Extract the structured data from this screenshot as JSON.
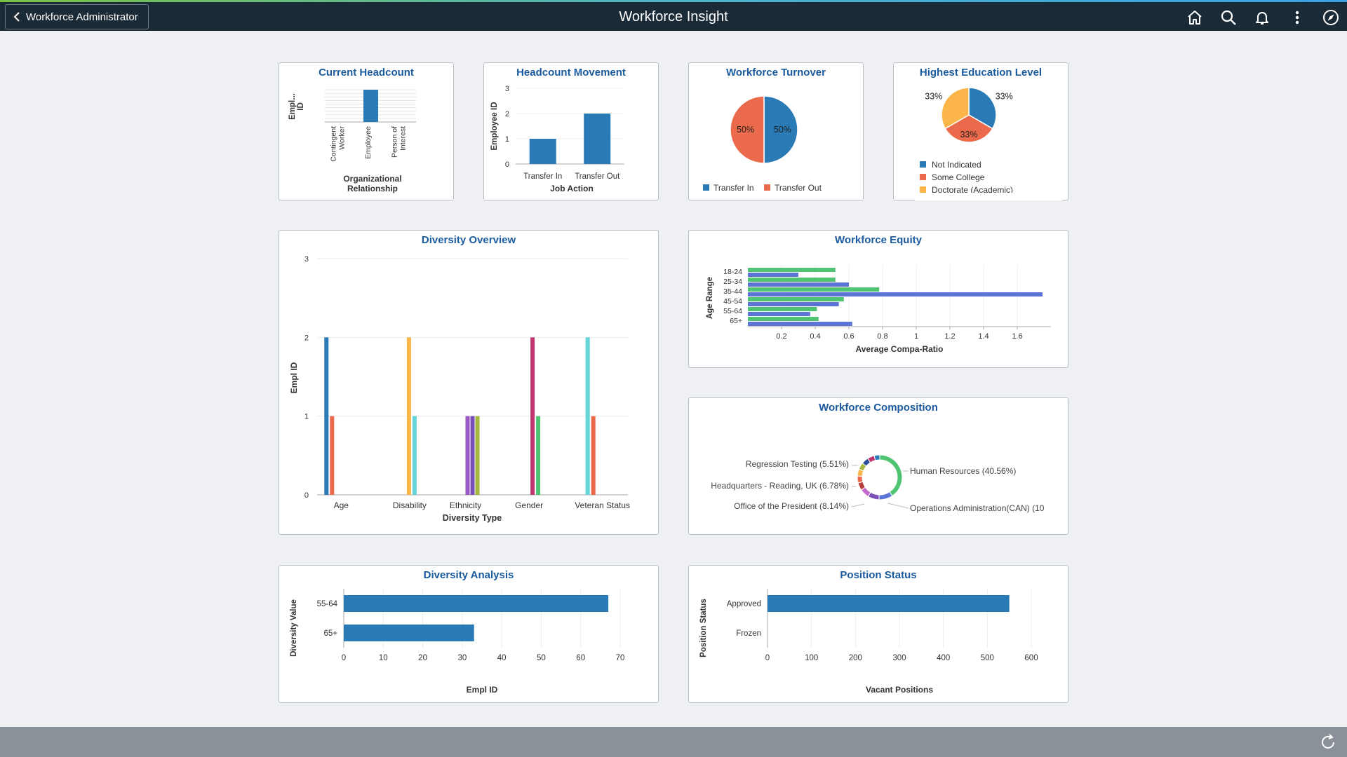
{
  "header": {
    "back_label": "Workforce Administrator",
    "title": "Workforce Insight",
    "icons": [
      "home-icon",
      "search-icon",
      "bell-icon",
      "more-vertical-icon",
      "navbar-compass-icon"
    ]
  },
  "footer": {
    "icon": "refresh-icon"
  },
  "colors": {
    "accent": "#1a5a9e",
    "bar": "#2a7ab5",
    "header_bg": "#1b2a37"
  },
  "tiles": {
    "current_headcount": {
      "title": "Current Headcount",
      "chart_data": {
        "type": "bar",
        "categories": [
          "Contingent Worker",
          "Employee",
          "Person of Interest"
        ],
        "values": [
          0,
          1,
          0
        ],
        "xlabel": "Organizational Relationship",
        "ylabel": "Empl... ID",
        "ylim": [
          0,
          1
        ]
      }
    },
    "headcount_movement": {
      "title": "Headcount Movement",
      "chart_data": {
        "type": "bar",
        "categories": [
          "Transfer In",
          "Transfer Out"
        ],
        "values": [
          1,
          2
        ],
        "xlabel": "Job Action",
        "ylabel": "Employee ID",
        "yticks": [
          "0",
          "1",
          "2",
          "3"
        ],
        "ylim": [
          0,
          3
        ]
      }
    },
    "workforce_turnover": {
      "title": "Workforce Turnover",
      "chart_data": {
        "type": "pie",
        "slices": [
          {
            "label": "Transfer In",
            "value": 50,
            "display": "50%",
            "color": "#2a7ab5"
          },
          {
            "label": "Transfer Out",
            "value": 50,
            "display": "50%",
            "color": "#ec6a4c"
          }
        ],
        "legend": "bottom"
      }
    },
    "education": {
      "title": "Highest Education Level",
      "chart_data": {
        "type": "pie",
        "slices": [
          {
            "label": "Not Indicated",
            "value": 33.33,
            "display": "33%",
            "color": "#2a7ab5"
          },
          {
            "label": "Some College",
            "value": 33.33,
            "display": "33%",
            "color": "#ec6a4c"
          },
          {
            "label": "Doctorate (Academic)",
            "value": 33.33,
            "display": "33%",
            "color": "#fbb549"
          }
        ],
        "legend": "bottom"
      }
    },
    "diversity_overview": {
      "title": "Diversity Overview",
      "chart_data": {
        "type": "bar",
        "categories": [
          "Age",
          "Disability",
          "Ethnicity",
          "Gender",
          "Veteran Status"
        ],
        "series": [
          {
            "values": [
              2,
              2,
              0,
              2,
              2
            ],
            "colors": [
              "#2a7ab5",
              "#fbb549",
              "",
              "#c0376f",
              "#65d5d9"
            ]
          },
          {
            "values": [
              1,
              1,
              0,
              1,
              1
            ],
            "colors": [
              "#ec6a4c",
              "#65d5d9",
              "",
              "#4fc573",
              "#ec6a4c"
            ]
          }
        ],
        "ethnicity_values": [
          1,
          1,
          1
        ],
        "ethnicity_colors": [
          "#9b59c6",
          "#7b4fb8",
          "#a5b83e"
        ],
        "xlabel": "Diversity Type",
        "ylabel": "Empl ID",
        "yticks": [
          "0",
          "1",
          "2",
          "3"
        ],
        "ylim": [
          0,
          3
        ]
      }
    },
    "workforce_equity": {
      "title": "Workforce Equity",
      "chart_data": {
        "type": "bar",
        "orientation": "horizontal",
        "categories": [
          "18-24",
          "25-34",
          "35-44",
          "45-54",
          "55-64",
          "65+"
        ],
        "series": [
          {
            "color": "#4fc573",
            "values": [
              0.52,
              0.52,
              0.78,
              0.57,
              0.41,
              0.42
            ]
          },
          {
            "color": "#5b74d6",
            "values": [
              0.3,
              0.6,
              1.75,
              0.54,
              0.37,
              0.62
            ]
          }
        ],
        "xticks": [
          "0.2",
          "0.4",
          "0.6",
          "0.8",
          "1",
          "1.2",
          "1.4",
          "1.6"
        ],
        "xlim": [
          0,
          1.8
        ],
        "xlabel": "Average Compa-Ratio",
        "ylabel": "Age Range"
      }
    },
    "workforce_composition": {
      "title": "Workforce Composition",
      "chart_data": {
        "type": "pie",
        "variant": "donut",
        "labels": [
          {
            "text": "Human Resources (40.56%)",
            "side": "right"
          },
          {
            "text": "Operations Administration(CAN) (10",
            "side": "right"
          },
          {
            "text": "Office of the President (8.14%)",
            "side": "left"
          },
          {
            "text": "Headquarters - Reading, UK (6.78%)",
            "side": "left"
          },
          {
            "text": "Regression Testing (5.51%)",
            "side": "left"
          }
        ],
        "slices": [
          {
            "value": 40.56,
            "color": "#4fc573"
          },
          {
            "value": 10,
            "color": "#5b74d6"
          },
          {
            "value": 8.14,
            "color": "#7b4fb8"
          },
          {
            "value": 6.78,
            "color": "#c06bc9"
          },
          {
            "value": 5.51,
            "color": "#b83c3c"
          },
          {
            "value": 5,
            "color": "#ec6a4c"
          },
          {
            "value": 5,
            "color": "#fbb549"
          },
          {
            "value": 5,
            "color": "#a5b83e"
          },
          {
            "value": 5,
            "color": "#2a4e9c"
          },
          {
            "value": 5,
            "color": "#c0376f"
          },
          {
            "value": 4.01,
            "color": "#2a7ab5"
          }
        ]
      }
    },
    "diversity_analysis": {
      "title": "Diversity Analysis",
      "chart_data": {
        "type": "bar",
        "orientation": "horizontal",
        "categories": [
          "55-64",
          "65+"
        ],
        "values": [
          67,
          33
        ],
        "xticks": [
          "0",
          "10",
          "20",
          "30",
          "40",
          "50",
          "60",
          "70"
        ],
        "xlim": [
          0,
          70
        ],
        "xlabel": "Empl ID",
        "ylabel": "Diversity Value"
      }
    },
    "position_status": {
      "title": "Position Status",
      "chart_data": {
        "type": "bar",
        "orientation": "horizontal",
        "categories": [
          "Approved",
          "Frozen"
        ],
        "values": [
          550,
          0
        ],
        "xticks": [
          "0",
          "100",
          "200",
          "300",
          "400",
          "500",
          "600"
        ],
        "xlim": [
          0,
          600
        ],
        "xlabel": "Vacant Positions",
        "ylabel": "Position Status"
      }
    }
  }
}
